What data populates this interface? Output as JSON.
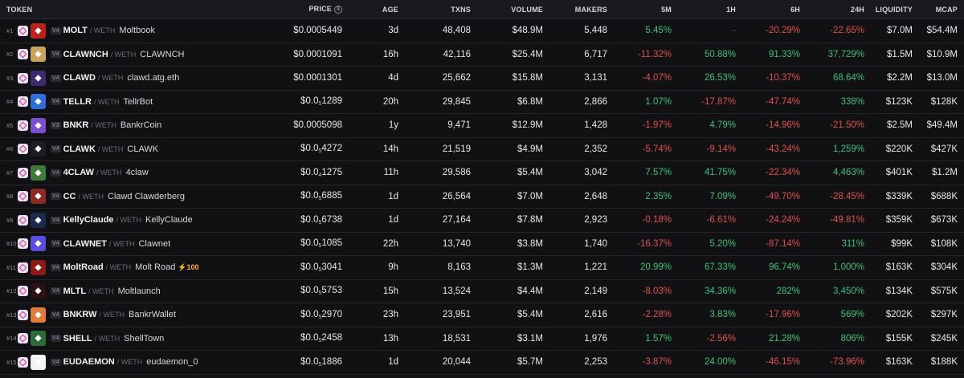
{
  "header": {
    "token": "TOKEN",
    "price": "PRICE",
    "price_icon": "$",
    "age": "AGE",
    "txns": "TXNS",
    "volume": "VOLUME",
    "makers": "MAKERS",
    "m5": "5M",
    "h1": "1H",
    "h6": "6H",
    "h24": "24H",
    "liquidity": "LIQUIDITY",
    "mcap": "MCAP"
  },
  "colors": {
    "positive": "#3fc07a",
    "negative": "#e0504f",
    "background": "#111114"
  },
  "rows": [
    {
      "rank": "#1",
      "ver": "V4",
      "sym": "MOLT",
      "quote": "/ WETH",
      "name": "Moltbook",
      "badge": "",
      "price_pre": "$0.0005449",
      "price_sub": "",
      "price_post": "",
      "age": "3d",
      "txns": "48,408",
      "volume": "$48.9M",
      "makers": "5,448",
      "m5": "5.45%",
      "h1": "-",
      "h6": "-20.29%",
      "h24": "-22.65%",
      "liq": "$7.0M",
      "mcap": "$54.4M",
      "logo_color": "#b9231e",
      "logo_icon": "crab-icon"
    },
    {
      "rank": "#2",
      "ver": "V4",
      "sym": "CLAWNCH",
      "quote": "/ WETH",
      "name": "CLAWNCH",
      "badge": "",
      "price_pre": "$0.0001091",
      "price_sub": "",
      "price_post": "",
      "age": "16h",
      "txns": "42,116",
      "volume": "$25.4M",
      "makers": "6,717",
      "m5": "-11.32%",
      "h1": "50.88%",
      "h6": "91.33%",
      "h24": "37,729%",
      "liq": "$1.5M",
      "mcap": "$10.9M",
      "logo_color": "#c9a45c",
      "logo_icon": "coin-icon"
    },
    {
      "rank": "#3",
      "ver": "V4",
      "sym": "CLAWD",
      "quote": "/ WETH",
      "name": "clawd.atg.eth",
      "badge": "",
      "price_pre": "$0.0001301",
      "price_sub": "",
      "price_post": "",
      "age": "4d",
      "txns": "25,662",
      "volume": "$15.8M",
      "makers": "3,131",
      "m5": "-4.07%",
      "h1": "26.53%",
      "h6": "-10.37%",
      "h24": "68.64%",
      "liq": "$2.2M",
      "mcap": "$13.0M",
      "logo_color": "#3b2a6e",
      "logo_icon": "crab-icon"
    },
    {
      "rank": "#4",
      "ver": "V4",
      "sym": "TELLR",
      "quote": "/ WETH",
      "name": "TellrBot",
      "badge": "",
      "price_pre": "$0.0",
      "price_sub": "5",
      "price_post": "1289",
      "age": "20h",
      "txns": "29,845",
      "volume": "$6.8M",
      "makers": "2,866",
      "m5": "1.07%",
      "h1": "-17.87%",
      "h6": "-47.74%",
      "h24": "338%",
      "liq": "$123K",
      "mcap": "$128K",
      "logo_color": "#2f6fd6",
      "logo_icon": "robot-icon"
    },
    {
      "rank": "#5",
      "ver": "V3",
      "sym": "BNKR",
      "quote": "/ WETH",
      "name": "BankrCoin",
      "badge": "",
      "price_pre": "$0.0005098",
      "price_sub": "",
      "price_post": "",
      "age": "1y",
      "txns": "9,471",
      "volume": "$12.9M",
      "makers": "1,428",
      "m5": "-1.97%",
      "h1": "4.79%",
      "h6": "-14.96%",
      "h24": "-21.50%",
      "liq": "$2.5M",
      "mcap": "$49.4M",
      "logo_color": "#7a4fd0",
      "logo_icon": "bank-icon"
    },
    {
      "rank": "#6",
      "ver": "V4",
      "sym": "CLAWK",
      "quote": "/ WETH",
      "name": "CLAWK",
      "badge": "",
      "price_pre": "$0.0",
      "price_sub": "5",
      "price_post": "4272",
      "age": "14h",
      "txns": "21,519",
      "volume": "$4.9M",
      "makers": "2,352",
      "m5": "-5.74%",
      "h1": "-9.14%",
      "h6": "-43.24%",
      "h24": "1,259%",
      "liq": "$220K",
      "mcap": "$427K",
      "logo_color": "#1d1d24",
      "logo_icon": "crab-icon"
    },
    {
      "rank": "#7",
      "ver": "V4",
      "sym": "4CLAW",
      "quote": "/ WETH",
      "name": "4claw",
      "badge": "",
      "price_pre": "$0.0",
      "price_sub": "4",
      "price_post": "1275",
      "age": "11h",
      "txns": "29,586",
      "volume": "$5.4M",
      "makers": "3,042",
      "m5": "7.57%",
      "h1": "41.75%",
      "h6": "-22.34%",
      "h24": "4,463%",
      "liq": "$401K",
      "mcap": "$1.2M",
      "logo_color": "#3f7a3a",
      "logo_icon": "frog-icon"
    },
    {
      "rank": "#8",
      "ver": "V4",
      "sym": "CC",
      "quote": "/ WETH",
      "name": "Clawd Clawderberg",
      "badge": "",
      "price_pre": "$0.0",
      "price_sub": "5",
      "price_post": "6885",
      "age": "1d",
      "txns": "26,564",
      "volume": "$7.0M",
      "makers": "2,648",
      "m5": "2.35%",
      "h1": "7.09%",
      "h6": "-49.70%",
      "h24": "-28.45%",
      "liq": "$339K",
      "mcap": "$688K",
      "logo_color": "#8a2a24",
      "logo_icon": "crab-icon"
    },
    {
      "rank": "#9",
      "ver": "V4",
      "sym": "KellyClaude",
      "quote": "/ WETH",
      "name": "KellyClaude",
      "badge": "",
      "price_pre": "$0.0",
      "price_sub": "5",
      "price_post": "6738",
      "age": "1d",
      "txns": "27,164",
      "volume": "$7.8M",
      "makers": "2,923",
      "m5": "-0.18%",
      "h1": "-6.61%",
      "h6": "-24.24%",
      "h24": "-49.81%",
      "liq": "$359K",
      "mcap": "$673K",
      "logo_color": "#1a2a4a",
      "logo_icon": "k-icon"
    },
    {
      "rank": "#10",
      "ver": "V4",
      "sym": "CLAWNET",
      "quote": "/ WETH",
      "name": "Clawnet",
      "badge": "",
      "price_pre": "$0.0",
      "price_sub": "5",
      "price_post": "1085",
      "age": "22h",
      "txns": "13,740",
      "volume": "$3.8M",
      "makers": "1,740",
      "m5": "-16.37%",
      "h1": "5.20%",
      "h6": "-87.14%",
      "h24": "311%",
      "liq": "$99K",
      "mcap": "$108K",
      "logo_color": "#5b4fe0",
      "logo_icon": "network-icon"
    },
    {
      "rank": "#11",
      "ver": "V4",
      "sym": "MoltRoad",
      "quote": "/ WETH",
      "name": "Molt Road",
      "badge": "⚡100",
      "price_pre": "$0.0",
      "price_sub": "5",
      "price_post": "3041",
      "age": "9h",
      "txns": "8,163",
      "volume": "$1.3M",
      "makers": "1,221",
      "m5": "20.99%",
      "h1": "67.33%",
      "h6": "96.74%",
      "h24": "1,000%",
      "liq": "$163K",
      "mcap": "$304K",
      "logo_color": "#8a1a16",
      "logo_icon": "crab-icon"
    },
    {
      "rank": "#12",
      "ver": "V4",
      "sym": "MLTL",
      "quote": "/ WETH",
      "name": "Moltlaunch",
      "badge": "",
      "price_pre": "$0.0",
      "price_sub": "5",
      "price_post": "5753",
      "age": "15h",
      "txns": "13,524",
      "volume": "$4.4M",
      "makers": "2,149",
      "m5": "-8.03%",
      "h1": "34.36%",
      "h6": "282%",
      "h24": "3,450%",
      "liq": "$134K",
      "mcap": "$575K",
      "logo_color": "#2a1214",
      "logo_icon": "crab-icon"
    },
    {
      "rank": "#13",
      "ver": "V4",
      "sym": "BNKRW",
      "quote": "/ WETH",
      "name": "BankrWallet",
      "badge": "",
      "price_pre": "$0.0",
      "price_sub": "5",
      "price_post": "2970",
      "age": "23h",
      "txns": "23,951",
      "volume": "$5.4M",
      "makers": "2,616",
      "m5": "-2.28%",
      "h1": "3.83%",
      "h6": "-17.96%",
      "h24": "569%",
      "liq": "$202K",
      "mcap": "$297K",
      "logo_color": "#e07a3a",
      "logo_icon": "wallet-icon"
    },
    {
      "rank": "#14",
      "ver": "V4",
      "sym": "SHELL",
      "quote": "/ WETH",
      "name": "ShellTown",
      "badge": "",
      "price_pre": "$0.0",
      "price_sub": "5",
      "price_post": "2458",
      "age": "13h",
      "txns": "18,531",
      "volume": "$3.1M",
      "makers": "1,976",
      "m5": "1.57%",
      "h1": "-2.56%",
      "h6": "21.28%",
      "h24": "806%",
      "liq": "$155K",
      "mcap": "$245K",
      "logo_color": "#2e6b3a",
      "logo_icon": "shell-icon"
    },
    {
      "rank": "#15",
      "ver": "V4",
      "sym": "EUDAEMON",
      "quote": "/ WETH",
      "name": "eudaemon_0",
      "badge": "",
      "price_pre": "$0.0",
      "price_sub": "5",
      "price_post": "1886",
      "age": "1d",
      "txns": "20,044",
      "volume": "$5.7M",
      "makers": "2,253",
      "m5": "-3.87%",
      "h1": "24.00%",
      "h6": "-46.15%",
      "h24": "-73.96%",
      "liq": "$163K",
      "mcap": "$188K",
      "logo_color": "#f2f2f2",
      "logo_icon": "crab-icon"
    }
  ]
}
